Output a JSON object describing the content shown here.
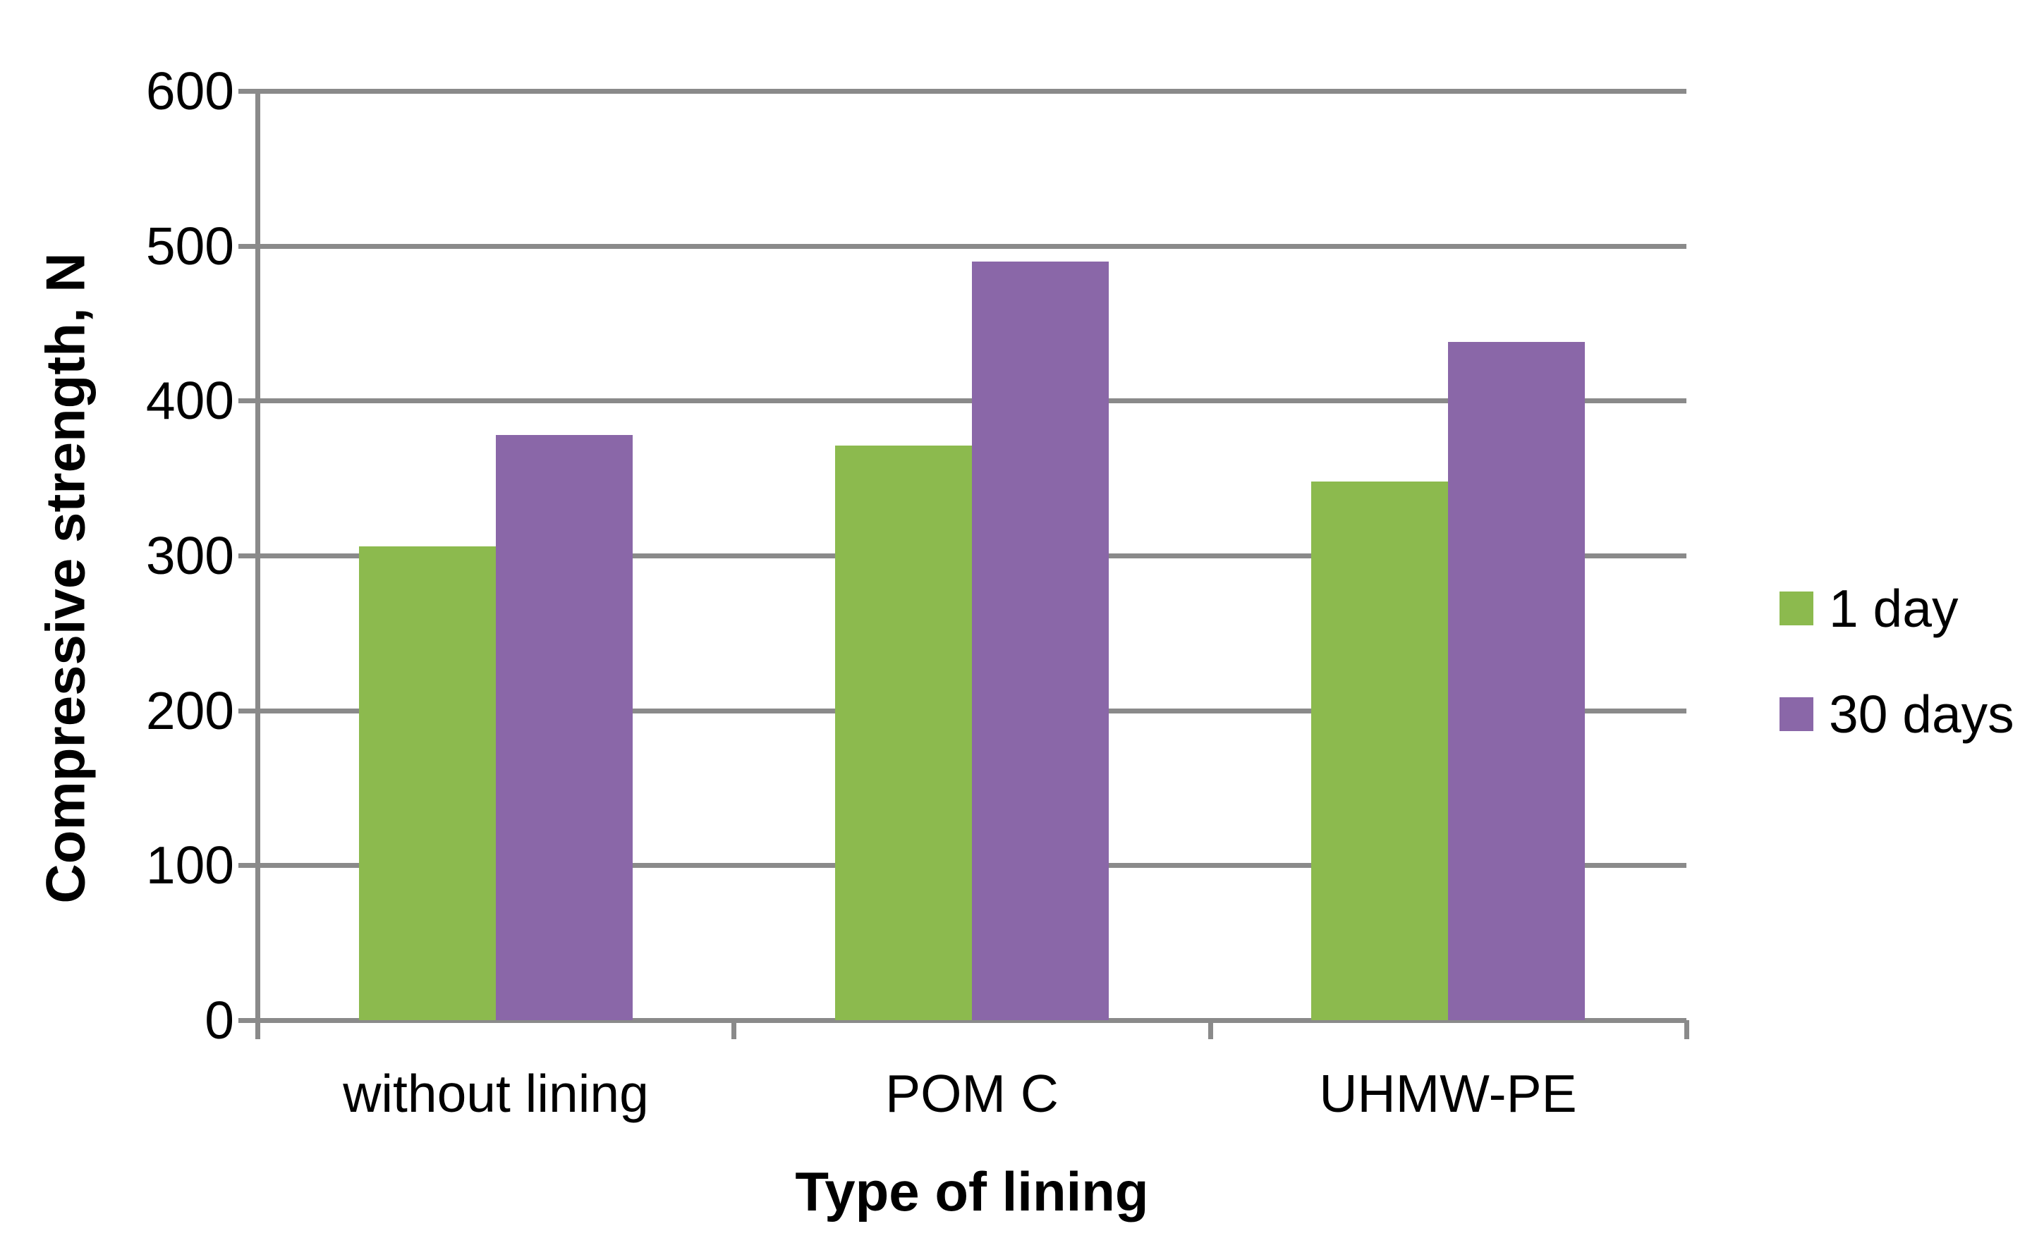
{
  "chart_data": {
    "type": "bar",
    "categories": [
      "without lining",
      "POM C",
      "UHMW-PE"
    ],
    "series": [
      {
        "name": "1 day",
        "color": "#8cba4e",
        "values": [
          306,
          371,
          348
        ]
      },
      {
        "name": "30 days",
        "color": "#8a67a8",
        "values": [
          378,
          490,
          438
        ]
      }
    ],
    "xlabel": "Type of lining",
    "ylabel": "Compressive strength, N",
    "ylim": [
      0,
      600
    ],
    "ytick_step": 100,
    "ytick_labels": [
      "600",
      "500",
      "400",
      "300",
      "200",
      "100",
      "0"
    ],
    "grid": true,
    "legend_position": "right",
    "colors": {
      "axis": "#8a8a8a",
      "text": "#000000",
      "background": "#ffffff"
    }
  }
}
